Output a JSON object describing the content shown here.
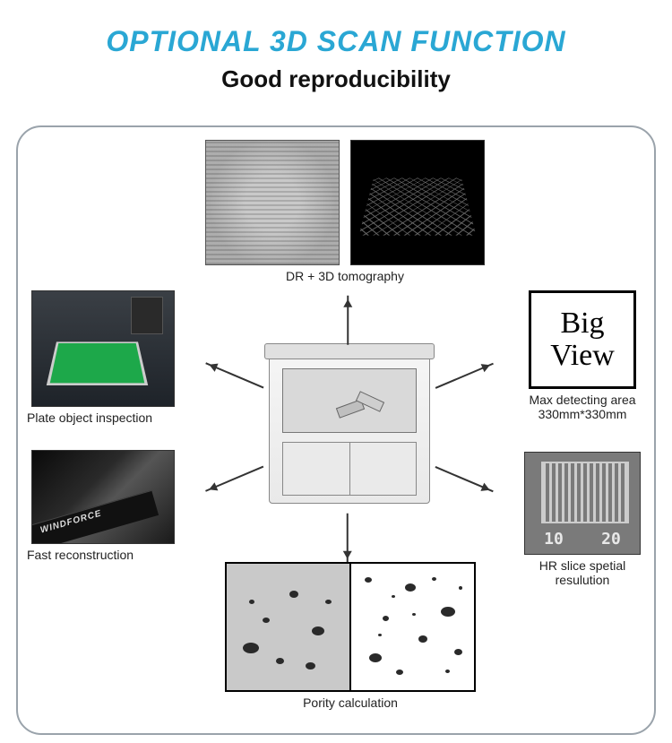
{
  "header": {
    "title": "OPTIONAL 3D SCAN  FUNCTION",
    "title_color": "#2aa7d4",
    "title_fontsize": 32,
    "subtitle": "Good reproducibility",
    "subtitle_color": "#111111",
    "subtitle_fontsize": 26
  },
  "container": {
    "border_color": "#9aa3ab",
    "border_radius": 28,
    "background": "#ffffff"
  },
  "center": {
    "name": "xray-scanner-machine"
  },
  "nodes": {
    "top": {
      "caption": "DR + 3D tomography",
      "images": [
        "chip-xray-grayscale",
        "chip-3d-render-black"
      ]
    },
    "left_upper": {
      "caption": "Plate object inspection",
      "image": "pcb-inspection-photo"
    },
    "left_lower": {
      "caption": "Fast reconstruction",
      "image": "gpu-card-photo",
      "insert_text": "WINDFORCE"
    },
    "right_upper": {
      "big_line1": "Big",
      "big_line2": "View",
      "big_fontsize": 34,
      "caption_line1": "Max detecting area",
      "caption_line2": "330mm*330mm"
    },
    "right_lower": {
      "caption": "HR slice spetial  resulution",
      "image": "resolution-lines-chart",
      "scale_left": "10",
      "scale_right": "20"
    },
    "bottom": {
      "caption": "Pority calculation",
      "images": [
        "porosity-grayscale",
        "porosity-binary"
      ]
    }
  },
  "arrows": {
    "color": "#333333",
    "count": 6
  },
  "blobs_left": [
    {
      "l": 18,
      "t": 88,
      "w": 18,
      "h": 12
    },
    {
      "l": 70,
      "t": 30,
      "w": 10,
      "h": 8
    },
    {
      "l": 40,
      "t": 60,
      "w": 8,
      "h": 6
    },
    {
      "l": 95,
      "t": 70,
      "w": 14,
      "h": 10
    },
    {
      "l": 55,
      "t": 105,
      "w": 9,
      "h": 7
    },
    {
      "l": 25,
      "t": 40,
      "w": 6,
      "h": 5
    },
    {
      "l": 110,
      "t": 40,
      "w": 7,
      "h": 5
    },
    {
      "l": 88,
      "t": 110,
      "w": 11,
      "h": 8
    }
  ],
  "blobs_right": [
    {
      "l": 15,
      "t": 15,
      "w": 8,
      "h": 6
    },
    {
      "l": 60,
      "t": 22,
      "w": 12,
      "h": 9
    },
    {
      "l": 100,
      "t": 48,
      "w": 16,
      "h": 11
    },
    {
      "l": 35,
      "t": 58,
      "w": 7,
      "h": 6
    },
    {
      "l": 75,
      "t": 80,
      "w": 10,
      "h": 8
    },
    {
      "l": 20,
      "t": 100,
      "w": 14,
      "h": 10
    },
    {
      "l": 115,
      "t": 95,
      "w": 9,
      "h": 7
    },
    {
      "l": 50,
      "t": 118,
      "w": 8,
      "h": 6
    },
    {
      "l": 90,
      "t": 15,
      "w": 5,
      "h": 4
    },
    {
      "l": 120,
      "t": 25,
      "w": 4,
      "h": 4
    },
    {
      "l": 45,
      "t": 35,
      "w": 4,
      "h": 3
    },
    {
      "l": 68,
      "t": 55,
      "w": 4,
      "h": 3
    },
    {
      "l": 30,
      "t": 78,
      "w": 4,
      "h": 3
    },
    {
      "l": 105,
      "t": 118,
      "w": 5,
      "h": 4
    }
  ]
}
